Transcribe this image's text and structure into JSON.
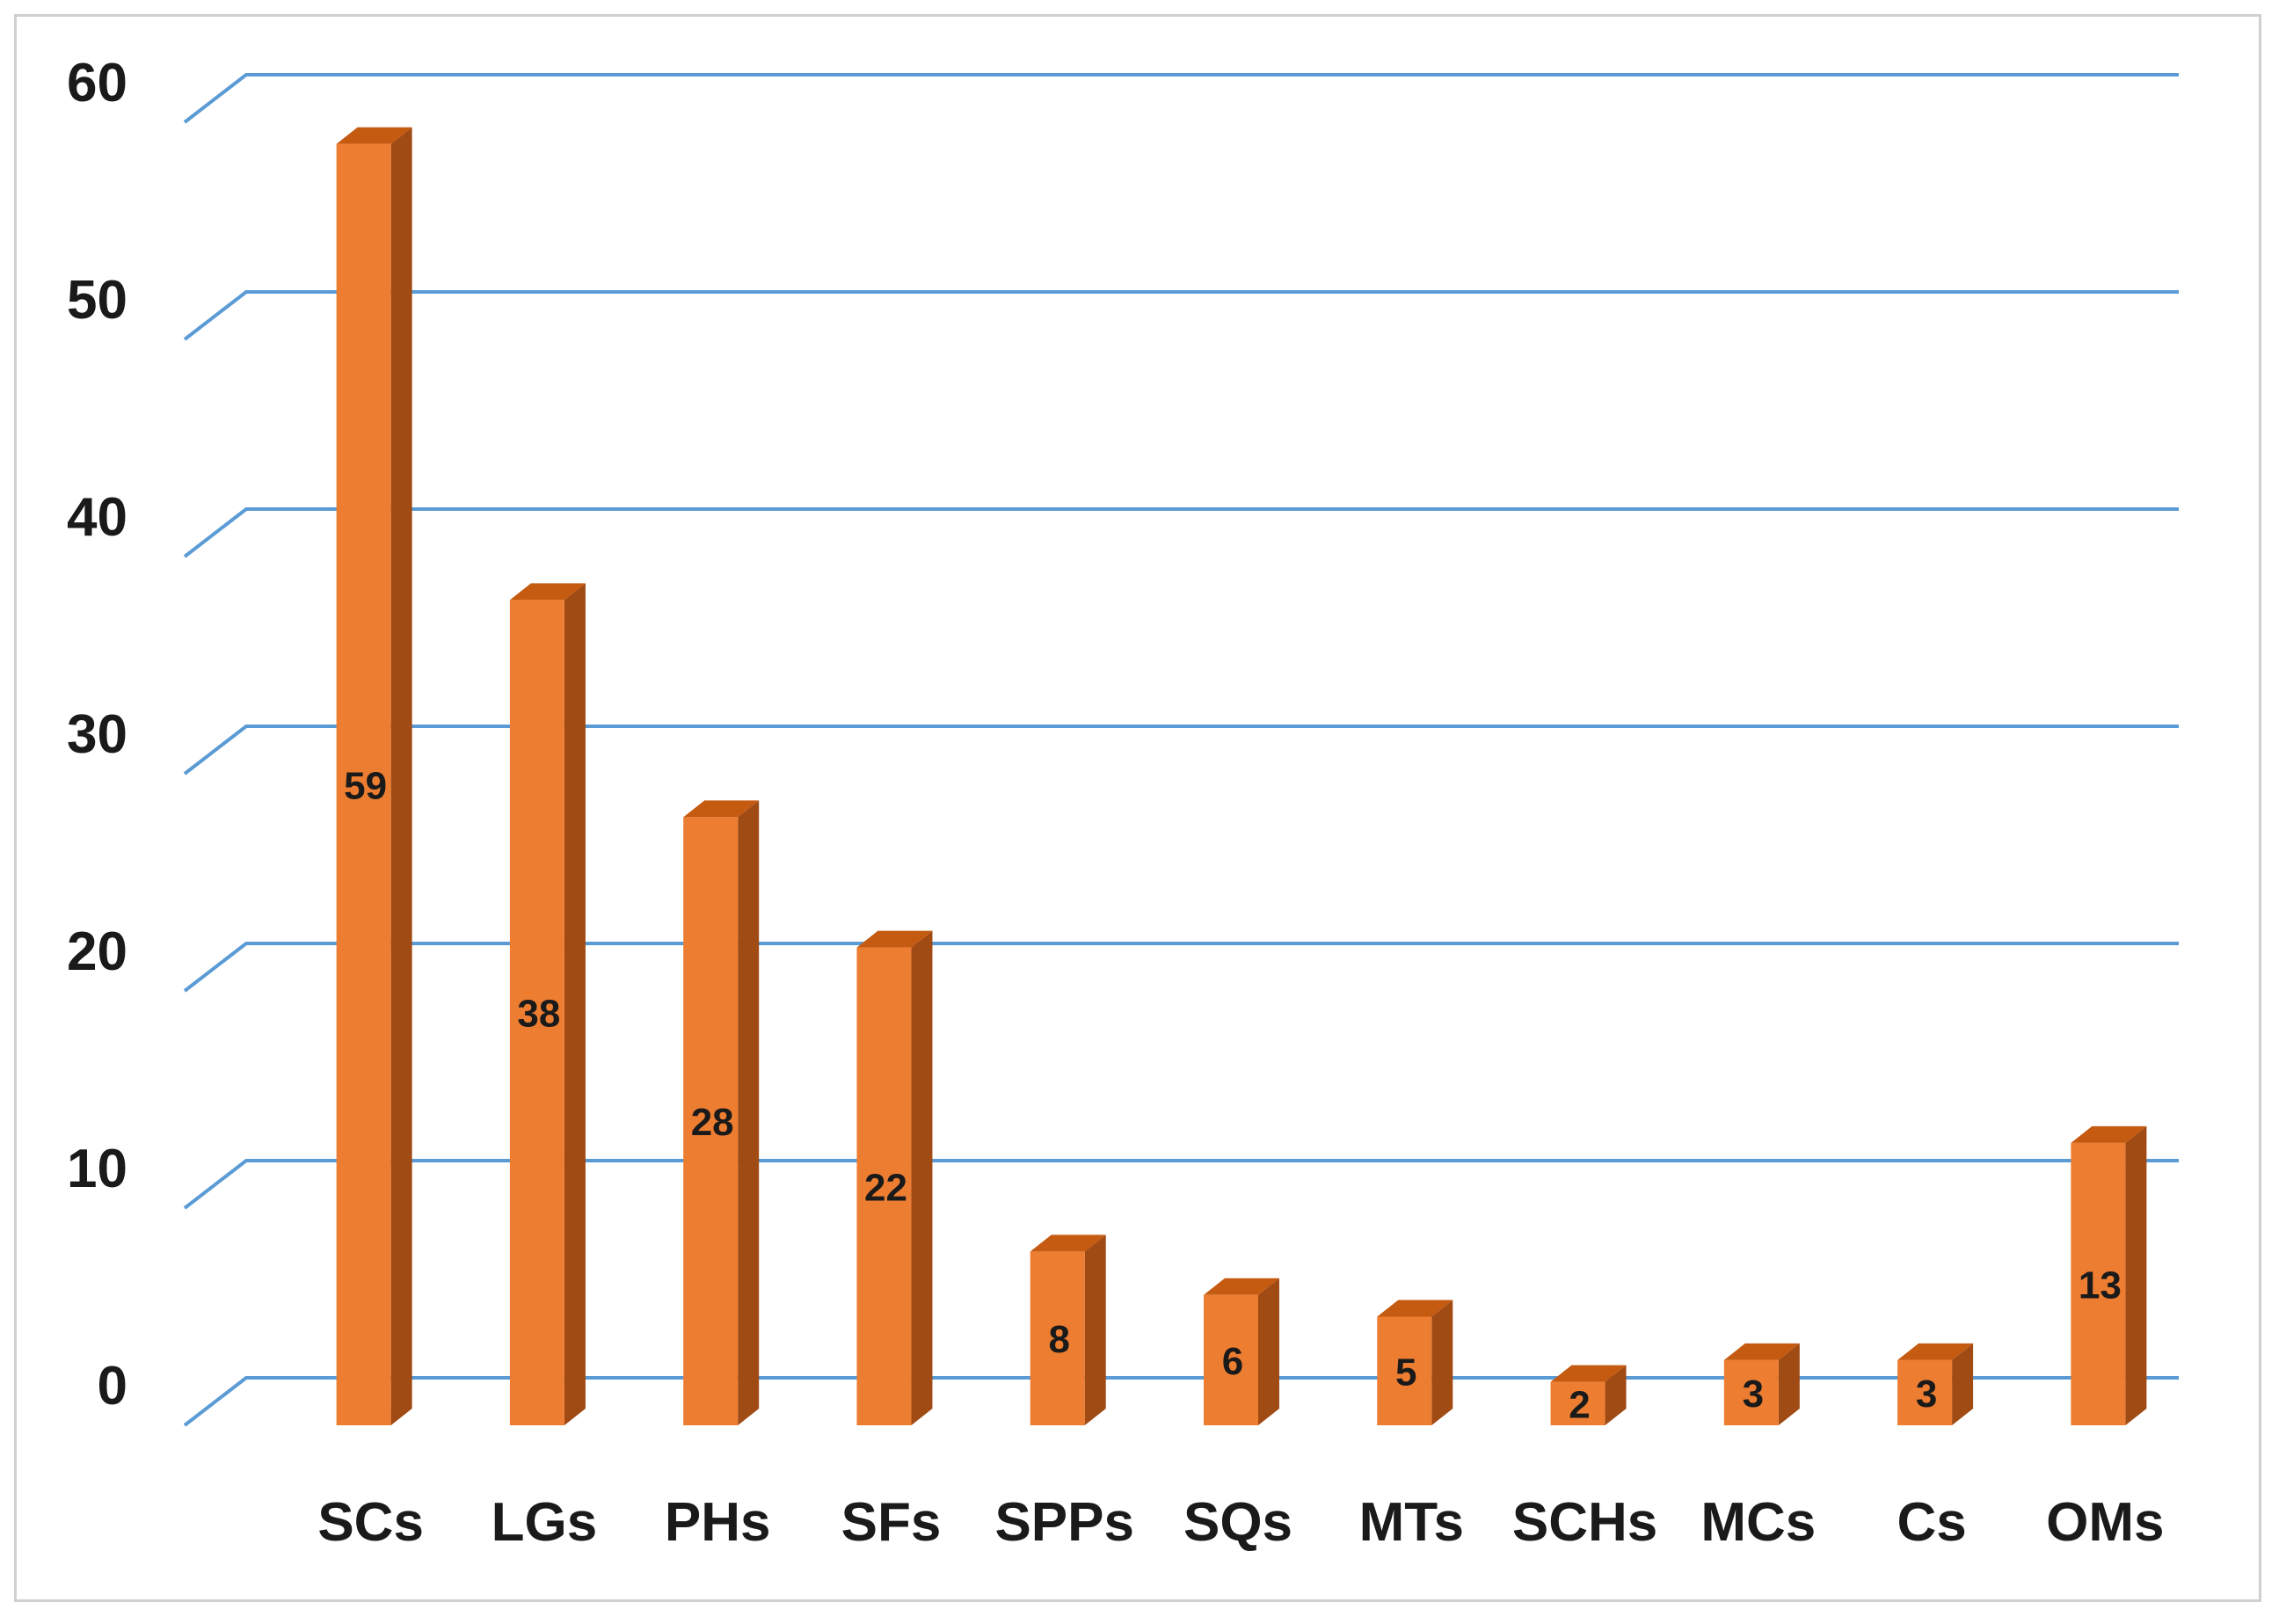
{
  "chart_data": {
    "type": "bar",
    "categories": [
      "SCs",
      "LGs",
      "PHs",
      "SFs",
      "SPPs",
      "SQs",
      "MTs",
      "SCHs",
      "MCs",
      "Cs",
      "OMs"
    ],
    "values": [
      59,
      38,
      28,
      22,
      8,
      6,
      5,
      2,
      3,
      3,
      13
    ],
    "data_labels": [
      "59",
      "38",
      "28",
      "22",
      "8",
      "6",
      "5",
      "2",
      "3",
      "3",
      "13"
    ],
    "y_ticks": [
      "0",
      "10",
      "20",
      "30",
      "40",
      "50",
      "60"
    ],
    "ylim": [
      0,
      60
    ],
    "grid": true,
    "legend": "none",
    "bar_style": "3d-column",
    "colors": {
      "bar_front": "#ED7D31",
      "bar_top": "#C55A11",
      "bar_side": "#A04A14",
      "grid": "#5B9BD5"
    }
  }
}
